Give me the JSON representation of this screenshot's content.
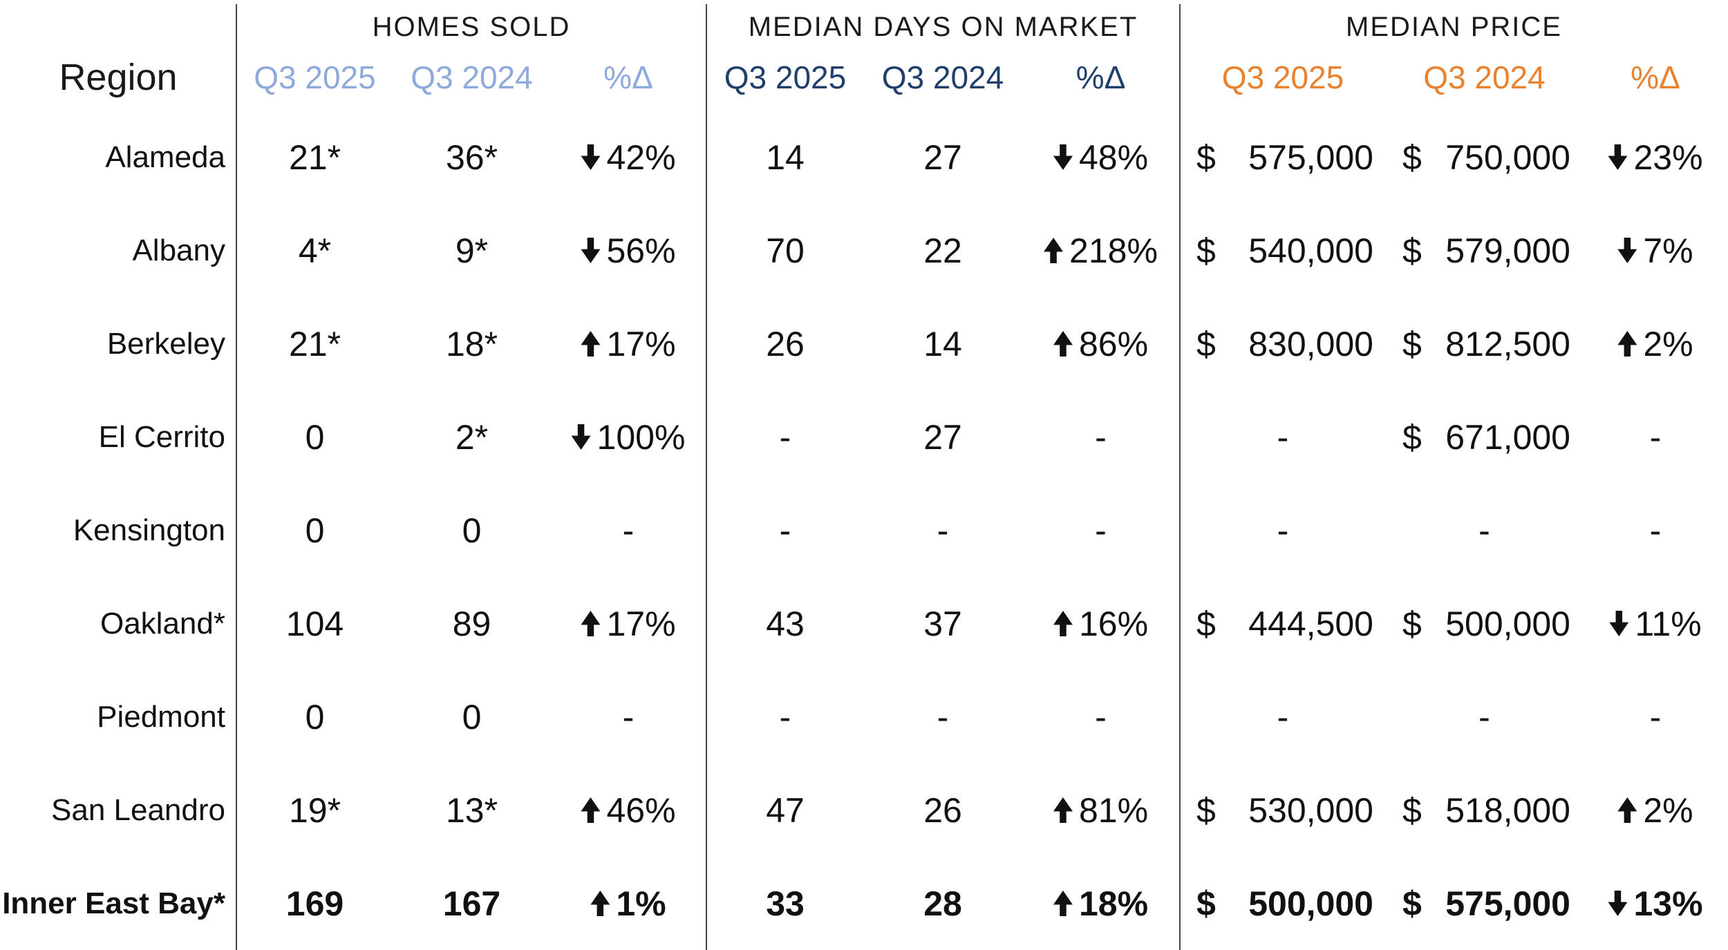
{
  "theme": {
    "accent_homes": "#8EA9DB",
    "accent_days": "#20406B",
    "accent_price": "#E8822F",
    "grid_line": "#454545",
    "text_color": "#111111"
  },
  "header": {
    "region_label": "Region",
    "sections": [
      {
        "title": "HOMES SOLD",
        "accent": "#8EA9DB",
        "columns": [
          "Q3 2025",
          "Q3 2024",
          "%Δ"
        ]
      },
      {
        "title": "MEDIAN DAYS ON MARKET",
        "accent": "#20406B",
        "columns": [
          "Q3 2025",
          "Q3 2024",
          "%Δ"
        ]
      },
      {
        "title": "MEDIAN PRICE",
        "accent": "#E8822F",
        "columns": [
          "Q3 2025",
          "Q3 2024",
          "%Δ"
        ]
      }
    ]
  },
  "rows": [
    {
      "region": "Alameda",
      "bold": false,
      "homes_sold": {
        "q3_2025": "21*",
        "q3_2024": "36*",
        "pct_change": {
          "dir": "down",
          "text": "42%"
        }
      },
      "days_on_market": {
        "q3_2025": "14",
        "q3_2024": "27",
        "pct_change": {
          "dir": "down",
          "text": "48%"
        }
      },
      "median_price": {
        "q3_2025": {
          "currency": "$",
          "amount": "575,000"
        },
        "q3_2024": {
          "currency": "$",
          "amount": "750,000"
        },
        "pct_change": {
          "dir": "down",
          "text": "23%"
        }
      }
    },
    {
      "region": "Albany",
      "bold": false,
      "homes_sold": {
        "q3_2025": "4*",
        "q3_2024": "9*",
        "pct_change": {
          "dir": "down",
          "text": "56%"
        }
      },
      "days_on_market": {
        "q3_2025": "70",
        "q3_2024": "22",
        "pct_change": {
          "dir": "up",
          "text": "218%"
        }
      },
      "median_price": {
        "q3_2025": {
          "currency": "$",
          "amount": "540,000"
        },
        "q3_2024": {
          "currency": "$",
          "amount": "579,000"
        },
        "pct_change": {
          "dir": "down",
          "text": "7%"
        }
      }
    },
    {
      "region": "Berkeley",
      "bold": false,
      "homes_sold": {
        "q3_2025": "21*",
        "q3_2024": "18*",
        "pct_change": {
          "dir": "up",
          "text": "17%"
        }
      },
      "days_on_market": {
        "q3_2025": "26",
        "q3_2024": "14",
        "pct_change": {
          "dir": "up",
          "text": "86%"
        }
      },
      "median_price": {
        "q3_2025": {
          "currency": "$",
          "amount": "830,000"
        },
        "q3_2024": {
          "currency": "$",
          "amount": "812,500"
        },
        "pct_change": {
          "dir": "up",
          "text": "2%"
        }
      }
    },
    {
      "region": "El Cerrito",
      "bold": false,
      "homes_sold": {
        "q3_2025": "0",
        "q3_2024": "2*",
        "pct_change": {
          "dir": "down",
          "text": "100%"
        }
      },
      "days_on_market": {
        "q3_2025": "-",
        "q3_2024": "27",
        "pct_change": {
          "dir": null,
          "text": "-"
        }
      },
      "median_price": {
        "q3_2025": {
          "currency": "",
          "amount": "-"
        },
        "q3_2024": {
          "currency": "$",
          "amount": "671,000"
        },
        "pct_change": {
          "dir": null,
          "text": "-"
        }
      }
    },
    {
      "region": "Kensington",
      "bold": false,
      "homes_sold": {
        "q3_2025": "0",
        "q3_2024": "0",
        "pct_change": {
          "dir": null,
          "text": "-"
        }
      },
      "days_on_market": {
        "q3_2025": "-",
        "q3_2024": "-",
        "pct_change": {
          "dir": null,
          "text": "-"
        }
      },
      "median_price": {
        "q3_2025": {
          "currency": "",
          "amount": "-"
        },
        "q3_2024": {
          "currency": "",
          "amount": "-"
        },
        "pct_change": {
          "dir": null,
          "text": "-"
        }
      }
    },
    {
      "region": "Oakland*",
      "bold": false,
      "homes_sold": {
        "q3_2025": "104",
        "q3_2024": "89",
        "pct_change": {
          "dir": "up",
          "text": "17%"
        }
      },
      "days_on_market": {
        "q3_2025": "43",
        "q3_2024": "37",
        "pct_change": {
          "dir": "up",
          "text": "16%"
        }
      },
      "median_price": {
        "q3_2025": {
          "currency": "$",
          "amount": "444,500"
        },
        "q3_2024": {
          "currency": "$",
          "amount": "500,000"
        },
        "pct_change": {
          "dir": "down",
          "text": "11%"
        }
      }
    },
    {
      "region": "Piedmont",
      "bold": false,
      "homes_sold": {
        "q3_2025": "0",
        "q3_2024": "0",
        "pct_change": {
          "dir": null,
          "text": "-"
        }
      },
      "days_on_market": {
        "q3_2025": "-",
        "q3_2024": "-",
        "pct_change": {
          "dir": null,
          "text": "-"
        }
      },
      "median_price": {
        "q3_2025": {
          "currency": "",
          "amount": "-"
        },
        "q3_2024": {
          "currency": "",
          "amount": "-"
        },
        "pct_change": {
          "dir": null,
          "text": "-"
        }
      }
    },
    {
      "region": "San Leandro",
      "bold": false,
      "homes_sold": {
        "q3_2025": "19*",
        "q3_2024": "13*",
        "pct_change": {
          "dir": "up",
          "text": "46%"
        }
      },
      "days_on_market": {
        "q3_2025": "47",
        "q3_2024": "26",
        "pct_change": {
          "dir": "up",
          "text": "81%"
        }
      },
      "median_price": {
        "q3_2025": {
          "currency": "$",
          "amount": "530,000"
        },
        "q3_2024": {
          "currency": "$",
          "amount": "518,000"
        },
        "pct_change": {
          "dir": "up",
          "text": "2%"
        }
      }
    },
    {
      "region": "Inner East Bay*",
      "bold": true,
      "homes_sold": {
        "q3_2025": "169",
        "q3_2024": "167",
        "pct_change": {
          "dir": "up",
          "text": "1%"
        }
      },
      "days_on_market": {
        "q3_2025": "33",
        "q3_2024": "28",
        "pct_change": {
          "dir": "up",
          "text": "18%"
        }
      },
      "median_price": {
        "q3_2025": {
          "currency": "$",
          "amount": "500,000"
        },
        "q3_2024": {
          "currency": "$",
          "amount": "575,000"
        },
        "pct_change": {
          "dir": "down",
          "text": "13%"
        }
      }
    }
  ]
}
